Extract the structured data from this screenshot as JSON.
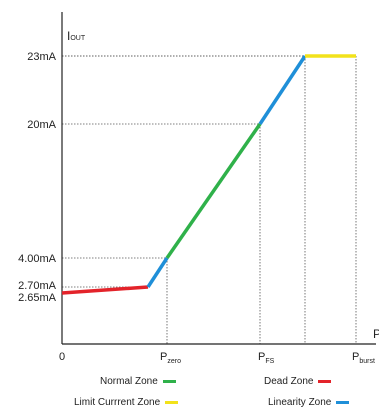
{
  "chart_data": {
    "type": "line",
    "xlabel": "P",
    "ylabel_main": "I",
    "ylabel_sub": "OUT",
    "x_ticks": [
      {
        "value": 0,
        "main": "0",
        "sub": ""
      },
      {
        "value": 2,
        "main": "P",
        "sub": "zero"
      },
      {
        "value": 4,
        "main": "P",
        "sub": "FS"
      },
      {
        "value": 5,
        "main": "P",
        "sub": "burst"
      }
    ],
    "y_ticks": [
      {
        "value": 23,
        "label": "23mA"
      },
      {
        "value": 20,
        "label": "20mA"
      },
      {
        "value": 4.0,
        "label": "4.00mA"
      },
      {
        "value": 2.7,
        "label": "2.70mA"
      },
      {
        "value": 2.65,
        "label": "2.65mA"
      }
    ],
    "series": [
      {
        "name": "Dead Zone",
        "color": "#e3232a",
        "x": [
          0,
          1.9
        ],
        "y": [
          2.5,
          2.7
        ]
      },
      {
        "name": "Linearity Zone",
        "color": "#1f8fd8",
        "x": [
          1.9,
          2.2
        ],
        "y": [
          2.7,
          4.0
        ]
      },
      {
        "name": "Normal Zone",
        "color": "#2fb14a",
        "x": [
          2.2,
          4.2
        ],
        "y": [
          4.0,
          20.0
        ]
      },
      {
        "name": "Linearity Zone",
        "color": "#1f8fd8",
        "x": [
          4.2,
          5.0
        ],
        "y": [
          20.0,
          23.0
        ]
      },
      {
        "name": "Limit Currrent Zone",
        "color": "#f2e21b",
        "x": [
          5.0,
          6.1
        ],
        "y": [
          23.0,
          23.0
        ]
      }
    ],
    "guides": [
      {
        "x": 2.2,
        "y": 4.0
      },
      {
        "x": 4.2,
        "y": 20.0
      },
      {
        "x": 5.0,
        "y": 23.0
      },
      {
        "x": 6.1,
        "y": 23.0
      },
      {
        "x": 0,
        "y": 2.7
      }
    ],
    "legend": [
      {
        "label": "Normal Zone",
        "color": "#2fb14a"
      },
      {
        "label": "Dead Zone",
        "color": "#e3232a"
      },
      {
        "label": "Limit Currrent Zone",
        "color": "#f2e21b"
      },
      {
        "label": "Linearity Zone",
        "color": "#1f8fd8"
      }
    ]
  }
}
